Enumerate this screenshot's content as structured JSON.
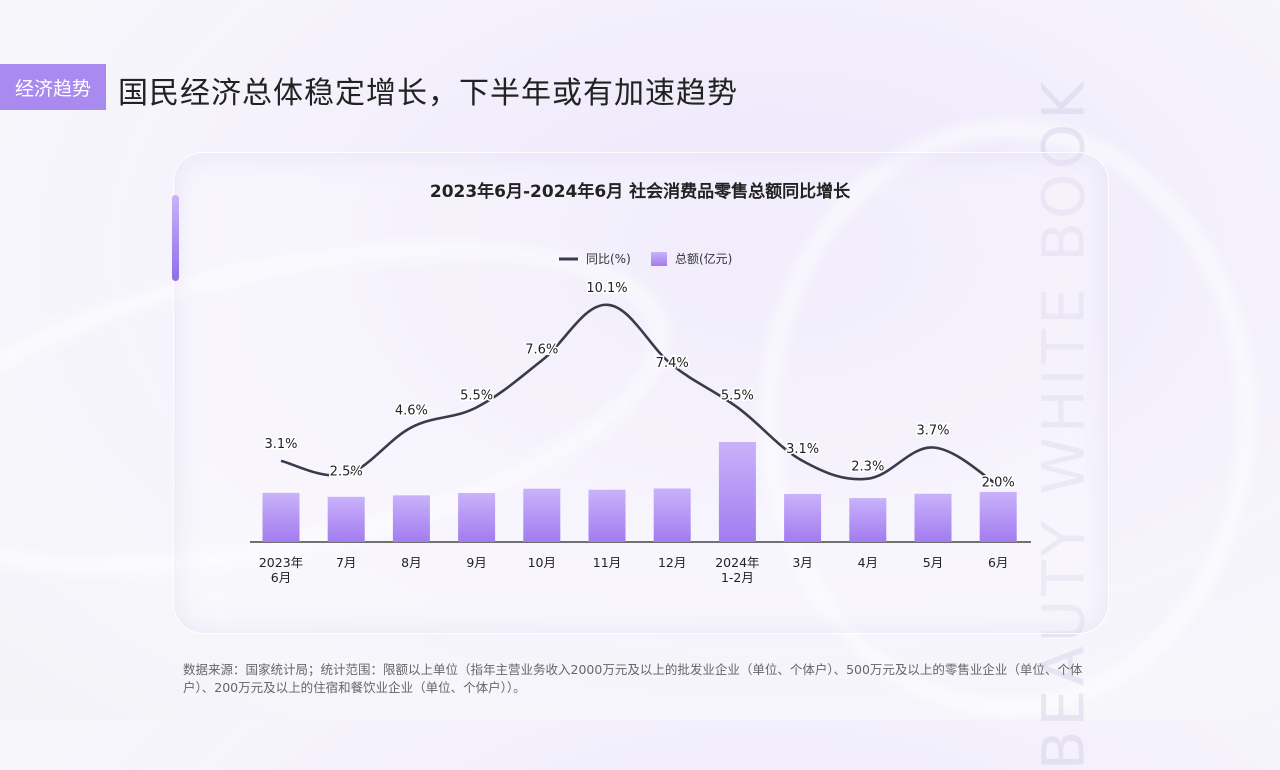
{
  "header": {
    "tag_label": "经济趋势",
    "title": "国民经济总体稳定增长，下半年或有加速趋势"
  },
  "watermark": "BEAUTY WHITE BOOK",
  "chart_data": {
    "type": "bar+line",
    "title": "2023年6月-2024年6月 社会消费品零售总额同比增长",
    "categories": [
      [
        "2023年",
        "6月"
      ],
      [
        "7月"
      ],
      [
        "8月"
      ],
      [
        "9月"
      ],
      [
        "10月"
      ],
      [
        "11月"
      ],
      [
        "12月"
      ],
      [
        "2024年",
        "1-2月"
      ],
      [
        "3月"
      ],
      [
        "4月"
      ],
      [
        "5月"
      ],
      [
        "6月"
      ]
    ],
    "series": [
      {
        "name": "同比(%)",
        "type": "line",
        "values": [
          3.1,
          2.5,
          4.6,
          5.5,
          7.6,
          10.1,
          7.4,
          5.5,
          3.1,
          2.3,
          3.7,
          2.0
        ],
        "labels": [
          "3.1%",
          "2.5%",
          "4.6%",
          "5.5%",
          "7.6%",
          "10.1%",
          "7.4%",
          "5.5%",
          "3.1%",
          "2.3%",
          "3.7%",
          "2.0%"
        ]
      },
      {
        "name": "总额(亿元)",
        "type": "bar",
        "values": [
          39951,
          36761,
          37933,
          39826,
          43333,
          42505,
          43550,
          81307,
          39020,
          35699,
          39211,
          40732
        ]
      }
    ],
    "legend_position": "top-center",
    "grid": false,
    "colors": {
      "line": "#3a3a4a",
      "bar_top": "#c9b2fa",
      "bar_bottom": "#a27cf0"
    }
  },
  "footnote": "数据来源：国家统计局；统计范围：限额以上单位（指年主营业务收入2000万元及以上的批发业企业（单位、个体户）、500万元及以上的零售业企业（单位、个体户）、200万元及以上的住宿和餐饮业企业（单位、个体户））。"
}
